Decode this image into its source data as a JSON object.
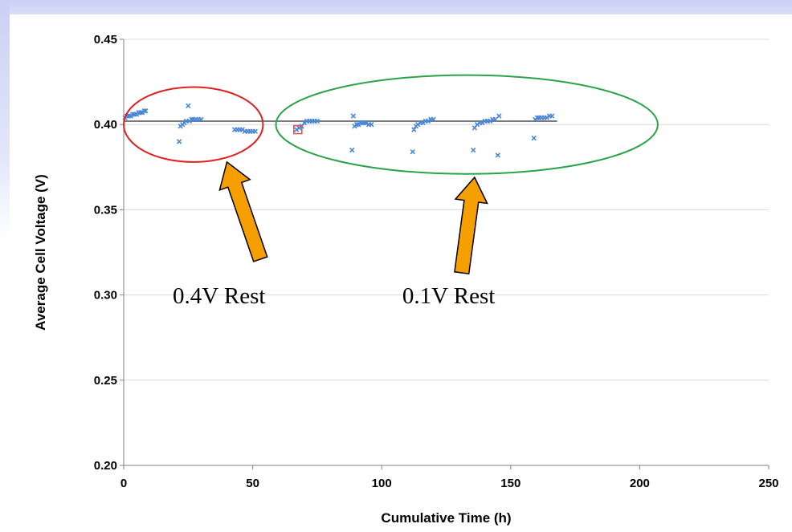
{
  "chart_data": {
    "type": "scatter",
    "title": "",
    "xlabel": "Cumulative Time (h)",
    "ylabel": "Average Cell Voltage (V)",
    "xlim": [
      0,
      250
    ],
    "ylim": [
      0.2,
      0.45
    ],
    "x_ticks": [
      0,
      50,
      100,
      150,
      200,
      250
    ],
    "y_ticks": [
      0.2,
      0.25,
      0.3,
      0.35,
      0.4,
      0.45
    ],
    "x_tick_labels": [
      "0",
      "50",
      "100",
      "150",
      "200",
      "250"
    ],
    "y_tick_labels": [
      "0.20",
      "0.25",
      "0.30",
      "0.35",
      "0.40",
      "0.45"
    ],
    "grid": "horizontal",
    "reference_line": {
      "y": 0.402,
      "x_start": 0,
      "x_end": 168
    },
    "series": [
      {
        "marker": "x",
        "color": "#4a86d6",
        "points": [
          [
            0.5,
            0.404
          ],
          [
            1.2,
            0.405
          ],
          [
            2,
            0.405
          ],
          [
            2.8,
            0.405
          ],
          [
            3.5,
            0.406
          ],
          [
            4.2,
            0.406
          ],
          [
            5,
            0.406
          ],
          [
            5.8,
            0.407
          ],
          [
            6.5,
            0.407
          ],
          [
            7.2,
            0.407
          ],
          [
            8,
            0.408
          ],
          [
            8.5,
            0.408
          ],
          [
            21.5,
            0.39
          ],
          [
            22,
            0.399
          ],
          [
            22.8,
            0.4
          ],
          [
            23.5,
            0.401
          ],
          [
            24.2,
            0.402
          ],
          [
            25,
            0.411
          ],
          [
            25.5,
            0.402
          ],
          [
            26.3,
            0.403
          ],
          [
            27,
            0.403
          ],
          [
            28,
            0.403
          ],
          [
            29,
            0.403
          ],
          [
            30,
            0.403
          ],
          [
            43,
            0.397
          ],
          [
            44,
            0.397
          ],
          [
            45,
            0.397
          ],
          [
            46,
            0.397
          ],
          [
            47,
            0.396
          ],
          [
            48,
            0.396
          ],
          [
            49,
            0.396
          ],
          [
            50,
            0.396
          ],
          [
            51,
            0.396
          ],
          [
            67,
            0.397
          ],
          [
            68,
            0.398
          ],
          [
            69,
            0.399
          ],
          [
            70,
            0.401
          ],
          [
            71,
            0.402
          ],
          [
            72,
            0.402
          ],
          [
            73,
            0.402
          ],
          [
            74,
            0.402
          ],
          [
            75,
            0.402
          ],
          [
            88.5,
            0.385
          ],
          [
            89,
            0.405
          ],
          [
            89.5,
            0.399
          ],
          [
            90.3,
            0.4
          ],
          [
            91,
            0.4
          ],
          [
            91.8,
            0.401
          ],
          [
            92.5,
            0.401
          ],
          [
            93.3,
            0.401
          ],
          [
            94,
            0.401
          ],
          [
            95,
            0.4
          ],
          [
            96,
            0.4
          ],
          [
            112,
            0.384
          ],
          [
            112.5,
            0.397
          ],
          [
            113.3,
            0.399
          ],
          [
            114,
            0.4
          ],
          [
            115,
            0.401
          ],
          [
            116,
            0.401
          ],
          [
            117,
            0.402
          ],
          [
            118,
            0.402
          ],
          [
            119,
            0.403
          ],
          [
            120,
            0.403
          ],
          [
            135.5,
            0.385
          ],
          [
            136,
            0.398
          ],
          [
            137,
            0.4
          ],
          [
            138,
            0.401
          ],
          [
            139,
            0.401
          ],
          [
            140,
            0.402
          ],
          [
            141,
            0.402
          ],
          [
            142,
            0.402
          ],
          [
            143,
            0.403
          ],
          [
            144,
            0.403
          ],
          [
            145,
            0.382
          ],
          [
            145.5,
            0.405
          ],
          [
            159,
            0.392
          ],
          [
            159.5,
            0.403
          ],
          [
            160.3,
            0.404
          ],
          [
            161,
            0.404
          ],
          [
            162,
            0.404
          ],
          [
            163,
            0.404
          ],
          [
            164,
            0.404
          ],
          [
            165,
            0.405
          ],
          [
            166,
            0.405
          ]
        ]
      },
      {
        "marker": "square",
        "color": "#e34a4a",
        "points": [
          [
            67.5,
            0.397
          ]
        ]
      }
    ],
    "annotations": [
      {
        "text": "0.4V Rest",
        "color": "#e02020",
        "ellipse_center": [
          27,
          0.4
        ],
        "ellipse_radii": [
          27,
          0.022
        ],
        "arrow_tip": [
          40,
          0.378
        ],
        "arrow_tail": [
          53,
          0.321
        ],
        "label_at": [
          19,
          0.295
        ]
      },
      {
        "text": "0.1V Rest",
        "color": "#2aa34a",
        "ellipse_center": [
          133,
          0.4
        ],
        "ellipse_radii": [
          74,
          0.029
        ],
        "arrow_tip": [
          136,
          0.369
        ],
        "arrow_tail": [
          131,
          0.313
        ],
        "label_at": [
          108,
          0.295
        ]
      }
    ],
    "arrow_color": "#f5a000"
  }
}
